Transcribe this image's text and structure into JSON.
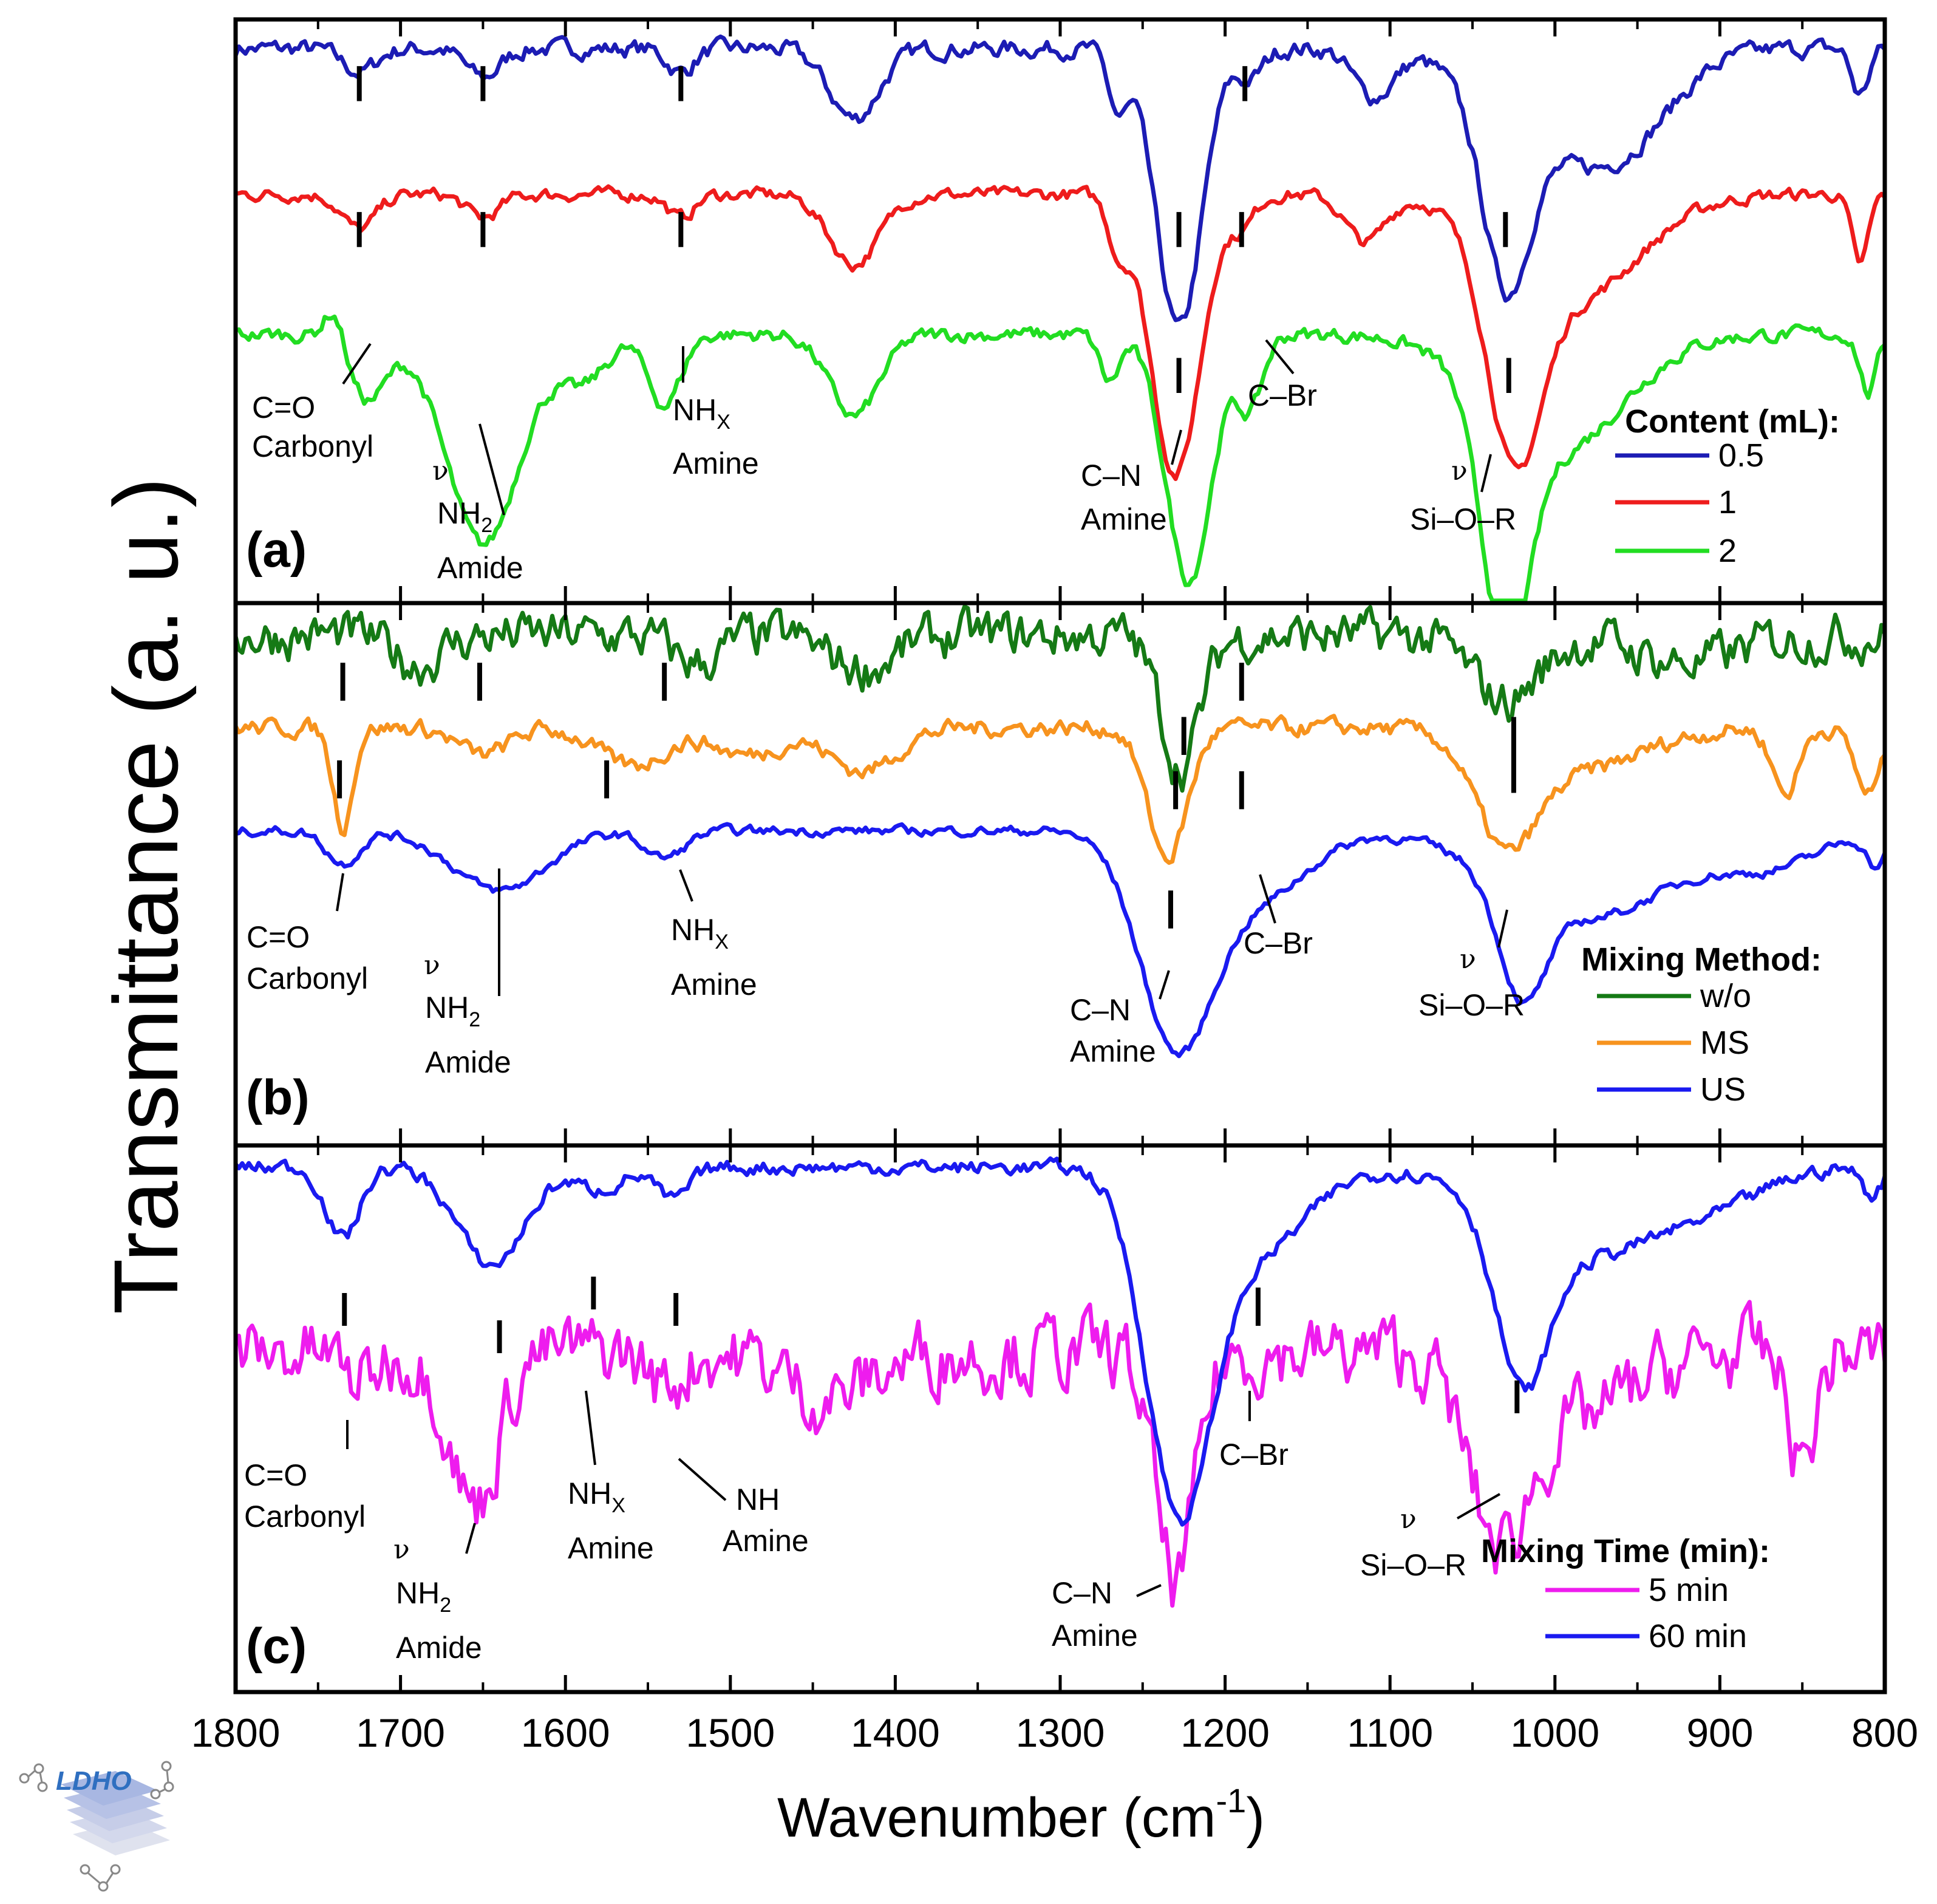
{
  "chart_data": {
    "type": "line",
    "xlabel": "Wavenumber (cm⁻¹)",
    "xlabel_main": "Wavenumber (cm",
    "xlabel_sup": "-1",
    "xlabel_close": ")",
    "ylabel": "Transmittance (a. u.)",
    "xlim": [
      1800,
      800
    ],
    "x_ticks": [
      1800,
      1700,
      1600,
      1500,
      1400,
      1300,
      1200,
      1100,
      1000,
      900,
      800
    ],
    "panels": [
      {
        "label": "(a)",
        "legend_title": "Content (mL):",
        "series": [
          {
            "name": "0.5",
            "color": "#1c1cb4",
            "offset": 0.95,
            "noise": 0.012,
            "dips": [
              [
                1725,
                10,
                0.04
              ],
              [
                1650,
                10,
                0.05
              ],
              [
                1530,
                8,
                0.04
              ],
              [
                1425,
                15,
                0.12
              ],
              [
                1265,
                6,
                0.1
              ],
              [
                1228,
                14,
                0.48
              ],
              [
                1185,
                8,
                0.05
              ],
              [
                1110,
                12,
                0.08
              ],
              [
                1030,
                14,
                0.3
              ],
              [
                1000,
                40,
                0.15
              ],
              [
                955,
                30,
                0.1
              ],
              [
                815,
                5,
                0.08
              ]
            ]
          },
          {
            "name": "1",
            "color": "#ee1c1c",
            "offset": 0.7,
            "noise": 0.009,
            "dips": [
              [
                1725,
                10,
                0.06
              ],
              [
                1650,
                10,
                0.04
              ],
              [
                1530,
                8,
                0.04
              ],
              [
                1425,
                15,
                0.12
              ],
              [
                1265,
                6,
                0.08
              ],
              [
                1230,
                15,
                0.48
              ],
              [
                1190,
                8,
                0.05
              ],
              [
                1115,
                12,
                0.08
              ],
              [
                1025,
                16,
                0.35
              ],
              [
                990,
                40,
                0.18
              ],
              [
                815,
                5,
                0.12
              ]
            ]
          },
          {
            "name": "2",
            "color": "#22dd22",
            "offset": 0.46,
            "noise": 0.01,
            "dips": [
              [
                1740,
                6,
                -0.06
              ],
              [
                1720,
                12,
                0.11
              ],
              [
                1650,
                22,
                0.36
              ],
              [
                1590,
                15,
                0.08
              ],
              [
                1540,
                10,
                0.12
              ],
              [
                1425,
                15,
                0.14
              ],
              [
                1270,
                6,
                0.08
              ],
              [
                1222,
                14,
                0.42
              ],
              [
                1185,
                8,
                0.12
              ],
              [
                1030,
                14,
                0.4
              ],
              [
                1000,
                40,
                0.2
              ],
              [
                810,
                5,
                0.1
              ]
            ]
          }
        ],
        "markers": [
          {
            "x": 1725,
            "top": 0.92,
            "len": 0.06
          },
          {
            "x": 1650,
            "top": 0.92,
            "len": 0.06
          },
          {
            "x": 1530,
            "top": 0.92,
            "len": 0.06
          },
          {
            "x": 1188,
            "top": 0.92,
            "len": 0.06
          },
          {
            "x": 1725,
            "top": 0.67,
            "len": 0.06
          },
          {
            "x": 1650,
            "top": 0.67,
            "len": 0.06
          },
          {
            "x": 1530,
            "top": 0.67,
            "len": 0.06
          },
          {
            "x": 1228,
            "top": 0.67,
            "len": 0.06
          },
          {
            "x": 1190,
            "top": 0.67,
            "len": 0.06
          },
          {
            "x": 1030,
            "top": 0.67,
            "len": 0.06
          },
          {
            "x": 1228,
            "top": 0.42,
            "len": 0.06
          },
          {
            "x": 1028,
            "top": 0.42,
            "len": 0.06
          }
        ]
      },
      {
        "label": "(b)",
        "legend_title": "Mixing Method:",
        "series": [
          {
            "name": "w/o",
            "color": "#157a15",
            "offset": 0.94,
            "noise": 0.035,
            "dips": [
              [
                1690,
                15,
                0.05
              ],
              [
                1520,
                15,
                0.05
              ],
              [
                1420,
                20,
                0.06
              ],
              [
                1227,
                12,
                0.24
              ],
              [
                1030,
                20,
                0.12
              ],
              [
                920,
                30,
                0.05
              ]
            ]
          },
          {
            "name": "MS",
            "color": "#f7931e",
            "offset": 0.77,
            "noise": 0.013,
            "dips": [
              [
                1735,
                6,
                0.18
              ],
              [
                1650,
                15,
                0.05
              ],
              [
                1560,
                20,
                0.07
              ],
              [
                1490,
                20,
                0.05
              ],
              [
                1420,
                20,
                0.08
              ],
              [
                1235,
                12,
                0.24
              ],
              [
                1030,
                18,
                0.18
              ],
              [
                990,
                40,
                0.08
              ],
              [
                860,
                8,
                0.12
              ],
              [
                810,
                8,
                0.12
              ]
            ]
          },
          {
            "name": "US",
            "color": "#1a1af0",
            "offset": 0.58,
            "noise": 0.007,
            "dips": [
              [
                1735,
                10,
                0.06
              ],
              [
                1640,
                28,
                0.11
              ],
              [
                1540,
                12,
                0.05
              ],
              [
                1230,
                22,
                0.38
              ],
              [
                1180,
                30,
                0.12
              ],
              [
                1020,
                14,
                0.2
              ],
              [
                980,
                50,
                0.16
              ],
              [
                870,
                30,
                0.06
              ],
              [
                805,
                6,
                0.06
              ]
            ]
          }
        ],
        "markers": [
          {
            "x": 1735,
            "top": 0.89,
            "len": 0.07
          },
          {
            "x": 1652,
            "top": 0.89,
            "len": 0.07
          },
          {
            "x": 1540,
            "top": 0.89,
            "len": 0.07
          },
          {
            "x": 1190,
            "top": 0.89,
            "len": 0.07
          },
          {
            "x": 1225,
            "top": 0.79,
            "len": 0.07
          },
          {
            "x": 1737,
            "top": 0.71,
            "len": 0.07
          },
          {
            "x": 1575,
            "top": 0.71,
            "len": 0.07
          },
          {
            "x": 1230,
            "top": 0.69,
            "len": 0.07
          },
          {
            "x": 1190,
            "top": 0.69,
            "len": 0.07
          },
          {
            "x": 1025,
            "top": 0.79,
            "len": 0.14
          },
          {
            "x": 1233,
            "top": 0.47,
            "len": 0.07
          }
        ]
      },
      {
        "label": "(c)",
        "legend_title": "Mixing Time (min):",
        "series": [
          {
            "name": "5 min",
            "color": "#ee1cee",
            "offset": 0.62,
            "noise": 0.055,
            "dips": [
              [
                1725,
                10,
                0.05
              ],
              [
                1655,
                14,
                0.28
              ],
              [
                1540,
                10,
                0.06
              ],
              [
                1440,
                25,
                0.08
              ],
              [
                1230,
                12,
                0.42
              ],
              [
                1035,
                18,
                0.3
              ],
              [
                990,
                35,
                0.12
              ],
              [
                850,
                8,
                0.2
              ]
            ]
          },
          {
            "name": "60 min",
            "color": "#1a1af0",
            "offset": 0.96,
            "noise": 0.011,
            "dips": [
              [
                1735,
                10,
                0.13
              ],
              [
                1645,
                20,
                0.18
              ],
              [
                1580,
                14,
                0.04
              ],
              [
                1535,
                10,
                0.06
              ],
              [
                1228,
                20,
                0.6
              ],
              [
                1180,
                30,
                0.15
              ],
              [
                1020,
                16,
                0.3
              ],
              [
                980,
                45,
                0.16
              ],
              [
                900,
                30,
                0.05
              ],
              [
                808,
                6,
                0.05
              ]
            ]
          }
        ],
        "markers": [
          {
            "x": 1734,
            "top": 0.73,
            "len": 0.06
          },
          {
            "x": 1640,
            "top": 0.68,
            "len": 0.06
          },
          {
            "x": 1583,
            "top": 0.76,
            "len": 0.06
          },
          {
            "x": 1533,
            "top": 0.73,
            "len": 0.06
          },
          {
            "x": 1180,
            "top": 0.74,
            "len": 0.07
          },
          {
            "x": 1023,
            "top": 0.57,
            "len": 0.06
          }
        ]
      }
    ]
  },
  "annotations": {
    "a": {
      "co1": "C=O",
      "co2": "Carbonyl",
      "nu1": "ν",
      "nh2": "NH",
      "nh2sub": "2",
      "amide": "Amide",
      "nhx": "NH",
      "nhxsub": "X",
      "amine1": "Amine",
      "cn": "C–N",
      "amine2": "Amine",
      "cbr": "C–Br",
      "nu2": "ν",
      "sior": "Si–O–R"
    },
    "b": {
      "co1": "C=O",
      "co2": "Carbonyl",
      "nu1": "ν",
      "nh2": "NH",
      "nh2sub": "2",
      "amide": "Amide",
      "nhx": "NH",
      "nhxsub": "X",
      "amine1": "Amine",
      "cn": "C–N",
      "amine2": "Amine",
      "cbr": "C–Br",
      "nu2": "ν",
      "sior": "Si–O–R"
    },
    "c": {
      "co1": "C=O",
      "co2": "Carbonyl",
      "nu1": "ν",
      "nh2": "NH",
      "nh2sub": "2",
      "amide": "Amide",
      "nhx": "NH",
      "nhxsub": "X",
      "amine1": "Amine",
      "nh": "NH",
      "amine3": "Amine",
      "cn": "C–N",
      "amine2": "Amine",
      "cbr": "C–Br",
      "nu2": "ν",
      "sior": "Si–O–R"
    }
  },
  "logo": {
    "text": "LDHO"
  }
}
